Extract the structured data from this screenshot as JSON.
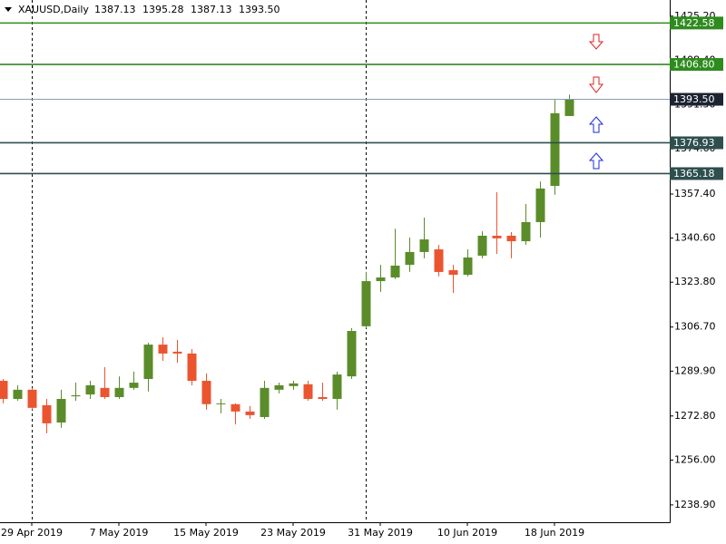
{
  "chart_data": {
    "type": "candlestick",
    "title": "XAUUSD,Daily",
    "header_values": [
      "1387.13",
      "1395.28",
      "1387.13",
      "1393.50"
    ],
    "categories": [
      null,
      null,
      "29 Apr 2019",
      null,
      null,
      null,
      null,
      null,
      "7 May 2019",
      null,
      null,
      null,
      null,
      null,
      "15 May 2019",
      null,
      null,
      null,
      null,
      null,
      "23 May 2019",
      null,
      null,
      null,
      null,
      null,
      "31 May 2019",
      null,
      null,
      null,
      null,
      null,
      "10 Jun 2019",
      null,
      null,
      null,
      null,
      null,
      "18 Jun 2019",
      null
    ],
    "open": [
      1286.2,
      1279.3,
      1282.8,
      1276.9,
      1270.3,
      1280.3,
      1281.0,
      1283.5,
      1280.0,
      1283.5,
      1286.9,
      1300.0,
      1297.3,
      1296.6,
      1286.2,
      1277.3,
      1277.3,
      1274.5,
      1272.4,
      1282.8,
      1284.2,
      1284.9,
      1280.0,
      1279.3,
      1287.9,
      1307.0,
      1324.2,
      1325.6,
      1330.4,
      1335.3,
      1336.3,
      1328.4,
      1326.6,
      1333.9,
      1341.5,
      1341.5,
      1339.4,
      1346.7,
      1360.5,
      1387.13
    ],
    "high": [
      1286.9,
      1284.5,
      1283.5,
      1279.3,
      1282.8,
      1285.5,
      1286.2,
      1291.4,
      1287.9,
      1289.7,
      1300.7,
      1302.8,
      1301.8,
      1298.3,
      1289.0,
      1279.3,
      1277.6,
      1276.6,
      1286.2,
      1285.5,
      1286.2,
      1286.2,
      1285.5,
      1289.7,
      1306.3,
      1327.7,
      1330.4,
      1344.2,
      1340.8,
      1348.4,
      1338.0,
      1330.4,
      1336.3,
      1343.2,
      1358.1,
      1342.9,
      1353.6,
      1362.2,
      1393.3,
      1395.28
    ],
    "low": [
      1277.6,
      1278.6,
      1275.2,
      1266.2,
      1268.3,
      1278.6,
      1279.3,
      1279.3,
      1279.3,
      1282.8,
      1282.1,
      1293.8,
      1293.1,
      1284.5,
      1275.2,
      1273.8,
      1269.6,
      1271.7,
      1271.7,
      1281.4,
      1282.8,
      1278.6,
      1278.6,
      1275.2,
      1286.9,
      1306.3,
      1320.1,
      1325.0,
      1327.7,
      1332.9,
      1326.0,
      1319.7,
      1326.0,
      1332.9,
      1334.6,
      1332.9,
      1338.0,
      1340.8,
      1357.1,
      1387.13
    ],
    "close": [
      1279.3,
      1282.8,
      1275.9,
      1270.0,
      1279.3,
      1280.7,
      1284.5,
      1280.0,
      1283.5,
      1285.5,
      1300.0,
      1296.6,
      1296.6,
      1286.2,
      1277.3,
      1277.6,
      1274.5,
      1273.1,
      1283.5,
      1284.5,
      1285.2,
      1279.3,
      1279.3,
      1288.6,
      1305.2,
      1324.2,
      1325.6,
      1330.1,
      1335.3,
      1340.1,
      1327.7,
      1326.6,
      1333.2,
      1341.5,
      1340.5,
      1339.4,
      1346.7,
      1359.5,
      1388.2,
      1393.5
    ],
    "up_color": "#5b8c2a",
    "down_color": "#ea5530",
    "ylim": [
      1232.3,
      1431.35
    ],
    "yticks": [
      {
        "value": 1425.2,
        "label": "1425.20"
      },
      {
        "value": 1408.4,
        "label": "1408.40"
      },
      {
        "value": 1391.5,
        "label": "1391.50"
      },
      {
        "value": 1374.6,
        "label": "1374.60"
      },
      {
        "value": 1357.4,
        "label": "1357.40"
      },
      {
        "value": 1340.6,
        "label": "1340.60"
      },
      {
        "value": 1323.8,
        "label": "1323.80"
      },
      {
        "value": 1306.7,
        "label": "1306.70"
      },
      {
        "value": 1289.9,
        "label": "1289.90"
      },
      {
        "value": 1272.8,
        "label": "1272.80"
      },
      {
        "value": 1256.0,
        "label": "1256.00"
      },
      {
        "value": 1238.9,
        "label": "1238.90"
      }
    ],
    "levels": [
      {
        "value": 1422.58,
        "label": "1422.58",
        "color": "#2e8b1e"
      },
      {
        "value": 1406.8,
        "label": "1406.80",
        "color": "#2e8b1e"
      },
      {
        "value": 1393.5,
        "label": "1393.50",
        "color": "#1c2433"
      },
      {
        "value": 1376.93,
        "label": "1376.93",
        "color": "#2f4f4f"
      },
      {
        "value": 1365.18,
        "label": "1365.18",
        "color": "#2f4f4f"
      }
    ]
  }
}
